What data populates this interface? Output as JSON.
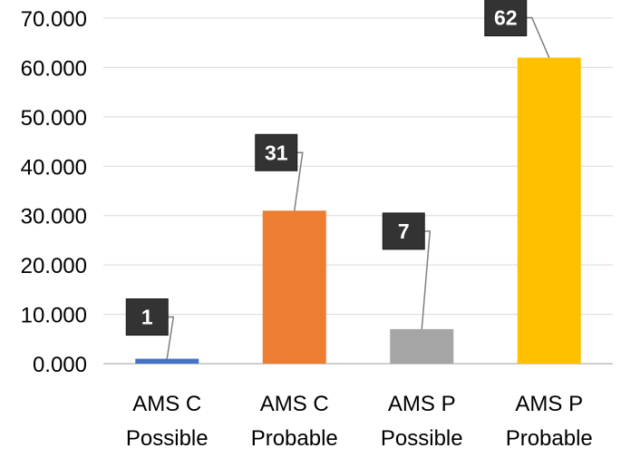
{
  "chart_data": {
    "type": "bar",
    "categories": [
      [
        "AMS C",
        "Possible"
      ],
      [
        "AMS C",
        "Probable"
      ],
      [
        "AMS P",
        "Possible"
      ],
      [
        "AMS P",
        "Probable"
      ]
    ],
    "values": [
      1,
      31,
      7,
      62
    ],
    "data_labels": [
      "1",
      "31",
      "7",
      "62"
    ],
    "bar_colors": [
      "#4472C4",
      "#ED7D31",
      "#A5A5A5",
      "#FFC000"
    ],
    "data_label_box_color": "#333333",
    "ylim": [
      0,
      70
    ],
    "yticks": [
      0,
      10,
      20,
      30,
      40,
      50,
      60,
      70
    ],
    "ytick_labels": [
      "0.000",
      "10.000",
      "20.000",
      "30.000",
      "40.000",
      "50.000",
      "60.000",
      "70.000"
    ],
    "grid": true,
    "legend": "none",
    "title": "",
    "xlabel": "",
    "ylabel": ""
  }
}
